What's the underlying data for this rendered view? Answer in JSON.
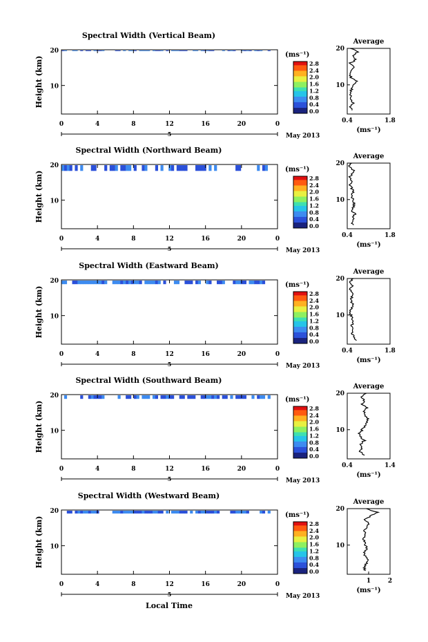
{
  "figure": {
    "xlabel": "Local Time",
    "date_label": "May 2013",
    "day_label": "5",
    "colorbar_unit": "(ms⁻¹)",
    "avg_title": "Average",
    "avg_xlabel": "(ms⁻¹)",
    "colormap": [
      "#1a237e",
      "#2b50d9",
      "#3d8bf0",
      "#27c4e8",
      "#3fe0b0",
      "#8ef060",
      "#e8f040",
      "#ffb020",
      "#ff5a10",
      "#e01010"
    ]
  },
  "chart_data": [
    {
      "type": "heatmap",
      "title": "Spectral Width (Vertical Beam)",
      "ylabel": "Height (km)",
      "x_range": [
        0,
        24
      ],
      "x_ticks": [
        "0",
        "4",
        "8",
        "12",
        "16",
        "20",
        "0"
      ],
      "y_range": [
        2,
        20
      ],
      "y_ticks": [
        "10",
        "20"
      ],
      "color_range": [
        0,
        2.8
      ],
      "colorbar_ticks": [
        "2.8",
        "2.4",
        "2.0",
        "1.6",
        "1.2",
        "0.8",
        "0.4",
        "0.0"
      ],
      "data_gaps_hours": [
        [
          4.9,
          5.1
        ],
        [
          5.4,
          5.6
        ],
        [
          16.8,
          17.3
        ],
        [
          18.2,
          18.35
        ],
        [
          22.5,
          22.7
        ],
        [
          23.0,
          23.2
        ]
      ],
      "cloud_top_km": 19.4,
      "high_width_band_hours": [
        15.6,
        16.6
      ],
      "average_profile": {
        "xlim": [
          0.4,
          1.8
        ],
        "x_ticks": [
          "0.4",
          "1.8"
        ],
        "y_ticks": [
          "10",
          "20"
        ],
        "height_km": [
          3,
          4,
          5,
          6,
          7,
          8,
          9,
          10,
          11,
          12,
          13,
          14,
          15,
          16,
          17,
          18,
          19,
          20
        ],
        "width_ms": [
          0.55,
          0.5,
          0.6,
          0.5,
          0.52,
          0.5,
          0.55,
          0.58,
          0.7,
          0.52,
          0.5,
          0.55,
          0.6,
          0.5,
          0.7,
          0.55,
          0.75,
          0.5
        ]
      }
    },
    {
      "type": "heatmap",
      "title": "Spectral Width (Northward Beam)",
      "ylabel": "Height (km)",
      "x_range": [
        0,
        24
      ],
      "x_ticks": [
        "0",
        "4",
        "8",
        "12",
        "16",
        "20",
        "0"
      ],
      "y_range": [
        2,
        20
      ],
      "y_ticks": [
        "10",
        "20"
      ],
      "color_range": [
        0,
        2.8
      ],
      "colorbar_ticks": [
        "2.8",
        "2.4",
        "2.0",
        "1.6",
        "1.2",
        "0.8",
        "0.4",
        "0.0"
      ],
      "data_gaps_hours": [
        [
          2.4,
          3.2
        ],
        [
          4.9,
          5.1
        ],
        [
          5.4,
          5.6
        ],
        [
          17.0,
          19.3
        ],
        [
          21.2,
          21.5
        ],
        [
          22.8,
          23.0
        ]
      ],
      "cloud_top_km": 18.0,
      "high_width_band_hours": [
        15.7,
        16.6
      ],
      "average_profile": {
        "xlim": [
          0.4,
          1.8
        ],
        "x_ticks": [
          "0.4",
          "1.8"
        ],
        "y_ticks": [
          "10",
          "20"
        ],
        "height_km": [
          3,
          4,
          5,
          6,
          7,
          8,
          9,
          10,
          11,
          12,
          13,
          14,
          15,
          16,
          17,
          18,
          19,
          20
        ],
        "width_ms": [
          0.6,
          0.55,
          0.6,
          0.65,
          0.55,
          0.6,
          0.62,
          0.58,
          0.55,
          0.6,
          0.55,
          0.5,
          0.52,
          0.48,
          0.55,
          0.6,
          0.45,
          0.55
        ]
      }
    },
    {
      "type": "heatmap",
      "title": "Spectral Width (Eastward Beam)",
      "ylabel": "Height (km)",
      "x_range": [
        0,
        24
      ],
      "x_ticks": [
        "0",
        "4",
        "8",
        "12",
        "16",
        "20",
        "0"
      ],
      "y_range": [
        2,
        20
      ],
      "y_ticks": [
        "10",
        "20"
      ],
      "color_range": [
        0,
        2.8
      ],
      "colorbar_ticks": [
        "2.8",
        "2.4",
        "2.0",
        "1.6",
        "1.2",
        "0.8",
        "0.4",
        "0.0"
      ],
      "data_gaps_hours": [
        [
          4.9,
          5.1
        ],
        [
          5.4,
          5.6
        ],
        [
          16.6,
          17.0
        ],
        [
          18.5,
          18.7
        ],
        [
          22.6,
          22.8
        ]
      ],
      "cloud_top_km": 18.6,
      "high_width_band_hours": [
        15.7,
        16.5
      ],
      "average_profile": {
        "xlim": [
          0.4,
          1.8
        ],
        "x_ticks": [
          "0.4",
          "1.8"
        ],
        "y_ticks": [
          "10",
          "20"
        ],
        "height_km": [
          3,
          4,
          5,
          6,
          7,
          8,
          9,
          10,
          11,
          12,
          13,
          14,
          15,
          16,
          17,
          18,
          19,
          20
        ],
        "width_ms": [
          0.7,
          0.6,
          0.55,
          0.6,
          0.55,
          0.58,
          0.55,
          0.52,
          0.5,
          0.55,
          0.58,
          0.52,
          0.55,
          0.6,
          0.5,
          0.55,
          0.45,
          0.6
        ]
      }
    },
    {
      "type": "heatmap",
      "title": "Spectral Width (Southward Beam)",
      "ylabel": "Height (km)",
      "x_range": [
        0,
        24
      ],
      "x_ticks": [
        "0",
        "4",
        "8",
        "12",
        "16",
        "20",
        "0"
      ],
      "y_range": [
        2,
        20
      ],
      "y_ticks": [
        "10",
        "20"
      ],
      "color_range": [
        0,
        2.8
      ],
      "colorbar_ticks": [
        "2.8",
        "2.4",
        "2.0",
        "1.6",
        "1.2",
        "0.8",
        "0.4",
        "0.0"
      ],
      "data_gaps_hours": [
        [
          1.2,
          1.5
        ],
        [
          2.4,
          2.8
        ],
        [
          4.5,
          5.6
        ],
        [
          15.0,
          15.3
        ],
        [
          17.3,
          17.6
        ],
        [
          20.5,
          20.7
        ],
        [
          22.6,
          22.8
        ]
      ],
      "cloud_top_km": 18.6,
      "high_width_band_hours": [
        8.5,
        16.3
      ],
      "average_profile": {
        "xlim": [
          0.4,
          1.4
        ],
        "x_ticks": [
          "0.4",
          "1.4"
        ],
        "y_ticks": [
          "10",
          "20"
        ],
        "height_km": [
          3,
          4,
          5,
          6,
          7,
          8,
          9,
          10,
          11,
          12,
          13,
          14,
          15,
          16,
          17,
          18,
          19,
          20
        ],
        "width_ms": [
          0.8,
          0.7,
          0.75,
          0.7,
          0.8,
          0.72,
          0.68,
          0.75,
          0.8,
          0.85,
          0.9,
          0.82,
          0.78,
          0.86,
          0.75,
          0.8,
          0.7,
          0.85
        ]
      }
    },
    {
      "type": "heatmap",
      "title": "Spectral Width (Westward Beam)",
      "ylabel": "Height (km)",
      "x_range": [
        0,
        24
      ],
      "x_ticks": [
        "0",
        "4",
        "8",
        "12",
        "16",
        "20",
        "0"
      ],
      "y_range": [
        2,
        20
      ],
      "y_ticks": [
        "10",
        "20"
      ],
      "color_range": [
        0,
        2.8
      ],
      "colorbar_ticks": [
        "2.8",
        "2.4",
        "2.0",
        "1.6",
        "1.2",
        "0.8",
        "0.4",
        "0.0"
      ],
      "data_gaps_hours": [
        [
          4.9,
          5.1
        ],
        [
          5.4,
          5.6
        ],
        [
          17.3,
          18.6
        ],
        [
          21.1,
          21.4
        ],
        [
          22.6,
          22.8
        ]
      ],
      "cloud_top_km": 18.8,
      "high_width_band_hours": [
        16.0,
        16.9
      ],
      "average_profile": {
        "xlim": [
          0.0,
          2.0
        ],
        "x_ticks": [
          "1",
          "2"
        ],
        "y_ticks": [
          "10",
          "20"
        ],
        "height_km": [
          3,
          4,
          5,
          6,
          7,
          8,
          9,
          10,
          11,
          12,
          13,
          14,
          15,
          16,
          17,
          18,
          19,
          20
        ],
        "width_ms": [
          0.85,
          0.8,
          0.9,
          0.95,
          0.85,
          0.8,
          0.9,
          0.85,
          0.8,
          0.78,
          0.85,
          0.8,
          0.9,
          1.0,
          0.85,
          1.1,
          1.4,
          0.9
        ]
      }
    }
  ]
}
